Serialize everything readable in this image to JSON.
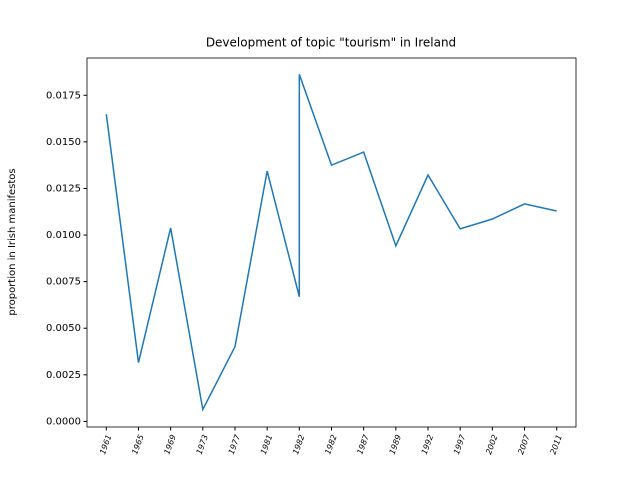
{
  "chart_data": {
    "type": "line",
    "title": "Development of topic \"tourism\" in Ireland",
    "ylabel": "proportion in Irish manifestos",
    "x": [
      0,
      1,
      2,
      3,
      4,
      5,
      6,
      6,
      7,
      8,
      9,
      10,
      11,
      12,
      13,
      14
    ],
    "series": [
      {
        "name": "tourism",
        "color": "#1f77b4",
        "values": [
          0.01648,
          0.00316,
          0.01038,
          0.00064,
          0.00401,
          0.01343,
          0.00669,
          0.01862,
          0.01375,
          0.01445,
          0.00942,
          0.01322,
          0.01033,
          0.01086,
          0.01167,
          0.01129
        ]
      }
    ],
    "xlim": [
      -0.6,
      14.6
    ],
    "xticks": [
      {
        "value": 0,
        "label": "1961"
      },
      {
        "value": 1,
        "label": "1965"
      },
      {
        "value": 2,
        "label": "1969"
      },
      {
        "value": 3,
        "label": "1973"
      },
      {
        "value": 4,
        "label": "1977"
      },
      {
        "value": 5,
        "label": "1981"
      },
      {
        "value": 6,
        "label": "1982"
      },
      {
        "value": 7,
        "label": "1982"
      },
      {
        "value": 8,
        "label": "1987"
      },
      {
        "value": 9,
        "label": "1989"
      },
      {
        "value": 10,
        "label": "1992"
      },
      {
        "value": 11,
        "label": "1997"
      },
      {
        "value": 12,
        "label": "2002"
      },
      {
        "value": 13,
        "label": "2007"
      },
      {
        "value": 14,
        "label": "2011"
      }
    ],
    "ylim": [
      -0.0003,
      0.0195
    ],
    "yticks": [
      {
        "value": 0,
        "label": "0.0000"
      },
      {
        "value": 0.0025,
        "label": "0.0025"
      },
      {
        "value": 0.005,
        "label": "0.0050"
      },
      {
        "value": 0.0075,
        "label": "0.0075"
      },
      {
        "value": 0.01,
        "label": "0.0100"
      },
      {
        "value": 0.0125,
        "label": "0.0125"
      },
      {
        "value": 0.015,
        "label": "0.0150"
      },
      {
        "value": 0.0175,
        "label": "0.0175"
      }
    ],
    "grid": false
  }
}
